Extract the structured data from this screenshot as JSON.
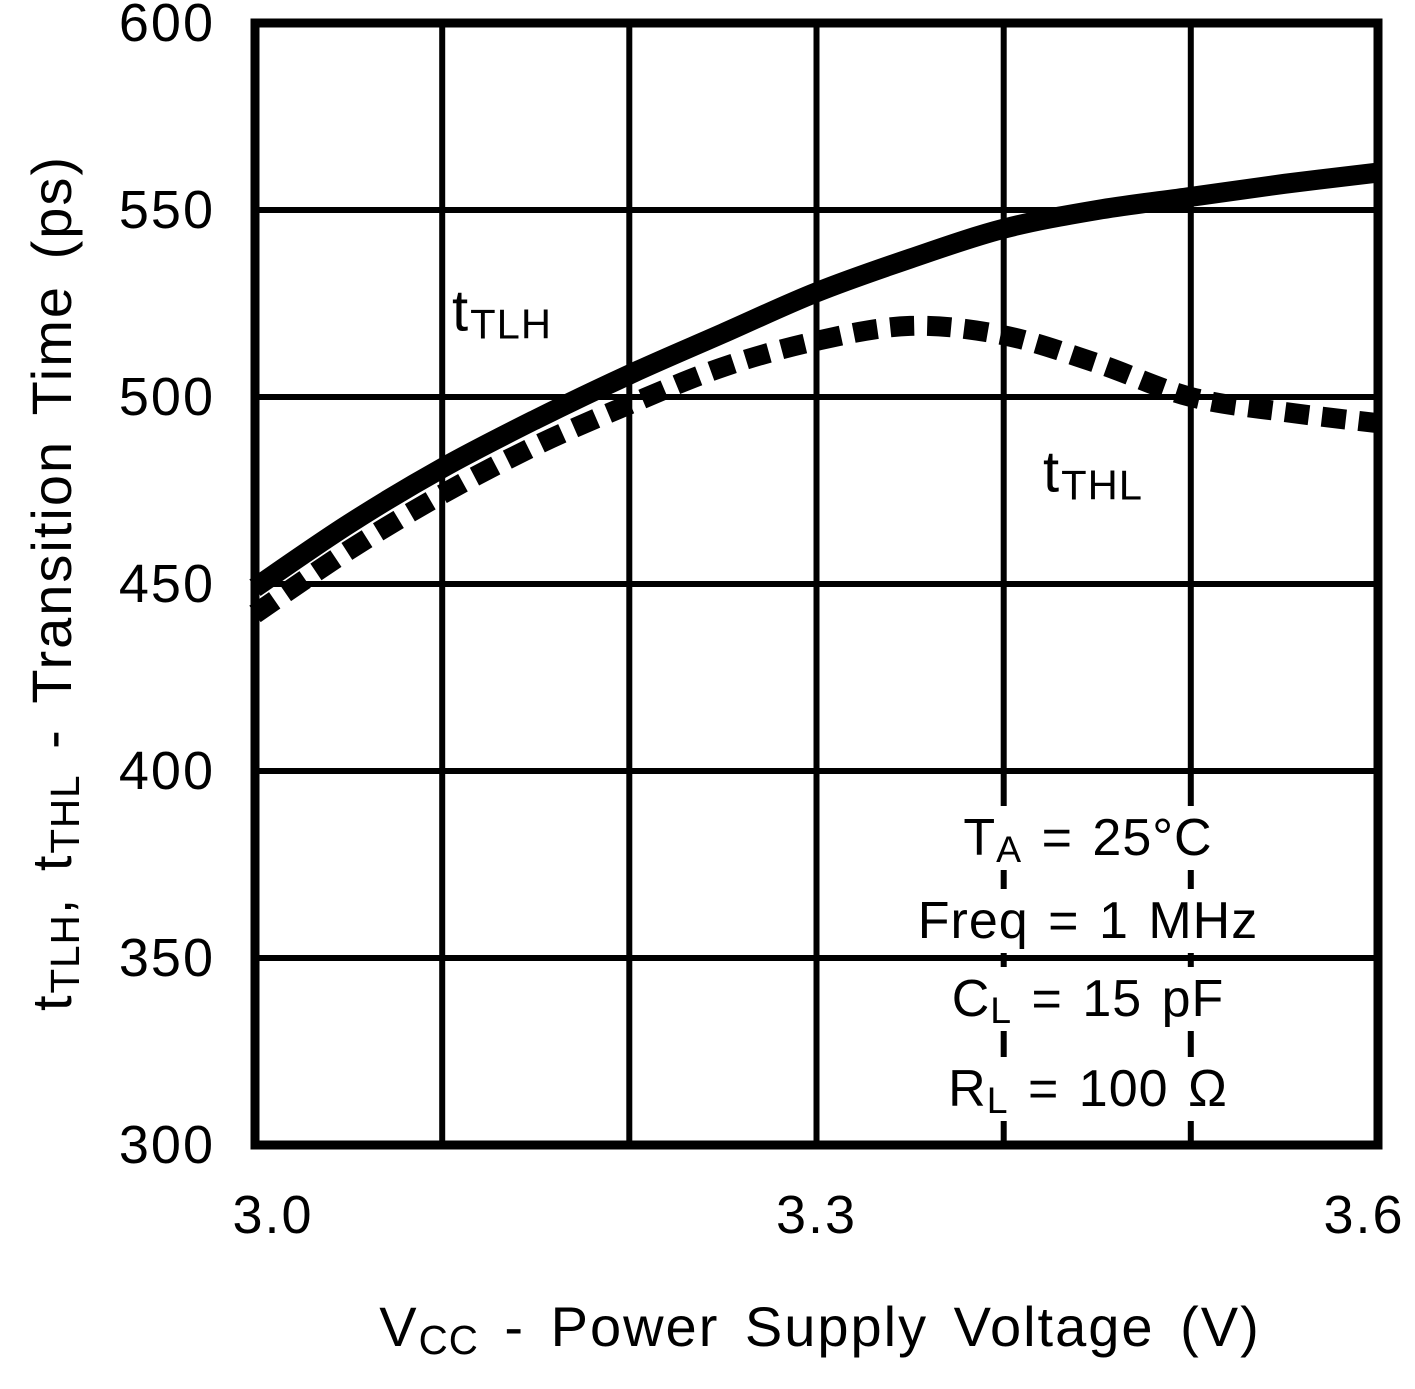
{
  "figure": {
    "background": "#ffffff",
    "ink": "#000000"
  },
  "chart_data": {
    "type": "line",
    "title": "",
    "xlabel_parts": [
      {
        "t": "V"
      },
      {
        "t": "CC",
        "sub": true
      },
      {
        "t": " - Power Supply Voltage (V)"
      }
    ],
    "ylabel_parts": [
      {
        "t": "t"
      },
      {
        "t": "TLH",
        "sub": true
      },
      {
        "t": ", t"
      },
      {
        "t": "THL",
        "sub": true
      },
      {
        "t": " - Transition Time (ps)"
      }
    ],
    "xlim": [
      3.0,
      3.6
    ],
    "ylim": [
      300,
      600
    ],
    "grid": true,
    "x_tick_labels": [
      {
        "value": 3.0,
        "label": "3.0"
      },
      {
        "value": 3.3,
        "label": "3.3"
      },
      {
        "value": 3.6,
        "label": "3.6"
      }
    ],
    "y_tick_labels": [
      {
        "value": 600,
        "label": "600"
      },
      {
        "value": 550,
        "label": "550"
      },
      {
        "value": 500,
        "label": "500"
      },
      {
        "value": 450,
        "label": "450"
      },
      {
        "value": 400,
        "label": "400"
      },
      {
        "value": 350,
        "label": "350"
      },
      {
        "value": 300,
        "label": "300"
      }
    ],
    "x_gridlines": [
      3.1,
      3.2,
      3.3,
      3.4,
      3.5
    ],
    "y_gridlines": [
      350,
      400,
      450,
      500,
      550
    ],
    "series": [
      {
        "name": "t-tlh",
        "label": "tTLH",
        "style": "solid",
        "x": [
          3.0,
          3.05,
          3.1,
          3.15,
          3.2,
          3.25,
          3.3,
          3.35,
          3.4,
          3.45,
          3.5,
          3.55,
          3.6
        ],
        "y": [
          449,
          466,
          481,
          494,
          506,
          517,
          528,
          537,
          545,
          550,
          553.5,
          557,
          560
        ]
      },
      {
        "name": "t-thl",
        "label": "tTHL",
        "style": "dashed",
        "x": [
          3.0,
          3.05,
          3.1,
          3.15,
          3.2,
          3.25,
          3.3,
          3.35,
          3.4,
          3.45,
          3.5,
          3.55,
          3.6
        ],
        "y": [
          442,
          459,
          474,
          487,
          498,
          508,
          515,
          519,
          516.5,
          509,
          500,
          496,
          493
        ]
      }
    ],
    "curve_labels": [
      {
        "name": "t-tlh-curve-label",
        "parts": [
          {
            "t": "t"
          },
          {
            "t": "TLH",
            "sub": true
          }
        ],
        "x": 3.105,
        "y": 523
      },
      {
        "name": "t-thl-curve-label",
        "parts": [
          {
            "t": "t"
          },
          {
            "t": "THL",
            "sub": true
          }
        ],
        "x": 3.421,
        "y": 480
      }
    ],
    "conditions": [
      {
        "name": "condition-ta",
        "parts": [
          {
            "t": "T"
          },
          {
            "t": "A",
            "sub": true
          },
          {
            "t": " = 25°C"
          }
        ],
        "x": 3.445,
        "y": 382
      },
      {
        "name": "condition-freq",
        "parts": [
          {
            "t": "Freq = 1 MHz"
          }
        ],
        "x": 3.445,
        "y": 360
      },
      {
        "name": "condition-cl",
        "parts": [
          {
            "t": "C"
          },
          {
            "t": "L",
            "sub": true
          },
          {
            "t": " = 15 pF"
          }
        ],
        "x": 3.445,
        "y": 339
      },
      {
        "name": "condition-rl",
        "parts": [
          {
            "t": "R"
          },
          {
            "t": "L",
            "sub": true
          },
          {
            "t": " = 100 Ω"
          }
        ],
        "x": 3.445,
        "y": 315
      }
    ]
  }
}
